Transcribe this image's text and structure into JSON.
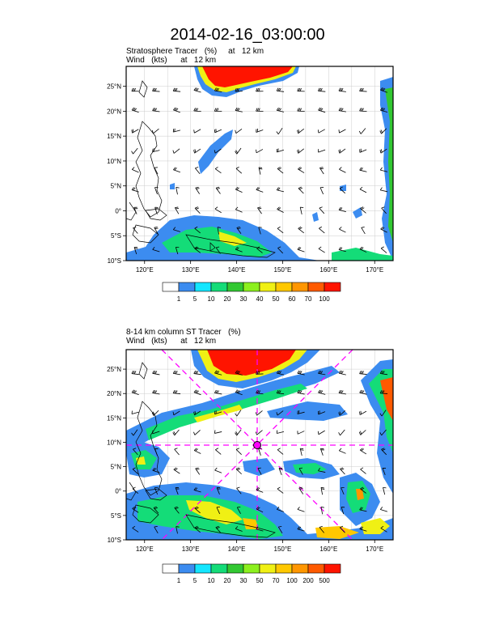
{
  "figure": {
    "title": "2014-02-16_03:00:00"
  },
  "panels": [
    {
      "id": "top",
      "title_line1": "Stratosphere Tracer   (%)     at   12 km",
      "title_line2": "Wind   (kts)      at   12 km",
      "colorbar_labels": [
        "1",
        "5",
        "10",
        "20",
        "30",
        "40",
        "50",
        "60",
        "70",
        "100"
      ],
      "colorbar_colors": [
        "#ffffff",
        "#3c8cf0",
        "#14e6ff",
        "#14dc78",
        "#32c832",
        "#8cf01e",
        "#f0f014",
        "#ffc800",
        "#ff9600",
        "#ff5a00",
        "#ff1400"
      ]
    },
    {
      "id": "bottom",
      "title_line1": "8-14 km column ST Tracer   (%)",
      "title_line2": "Wind   (kts)      at   12 km",
      "colorbar_labels": [
        "1",
        "5",
        "10",
        "20",
        "30",
        "50",
        "70",
        "100",
        "200",
        "500"
      ],
      "colorbar_colors": [
        "#ffffff",
        "#3c8cf0",
        "#14e6ff",
        "#14dc78",
        "#32c832",
        "#8cf01e",
        "#f0f014",
        "#ffc800",
        "#ff9600",
        "#ff5a00",
        "#ff1400"
      ],
      "storm_marker": {
        "lon": 145,
        "lat": 10,
        "color": "#ff00ff"
      }
    }
  ],
  "map": {
    "lon_range": [
      116,
      174
    ],
    "lat_range": [
      -10,
      29
    ],
    "lon_ticks": [
      "120°E",
      "130°E",
      "140°E",
      "150°E",
      "160°E",
      "170°E"
    ],
    "lat_ticks": [
      "10°S",
      "5°S",
      "0°",
      "5°N",
      "10°N",
      "15°N",
      "20°N",
      "25°N"
    ]
  }
}
